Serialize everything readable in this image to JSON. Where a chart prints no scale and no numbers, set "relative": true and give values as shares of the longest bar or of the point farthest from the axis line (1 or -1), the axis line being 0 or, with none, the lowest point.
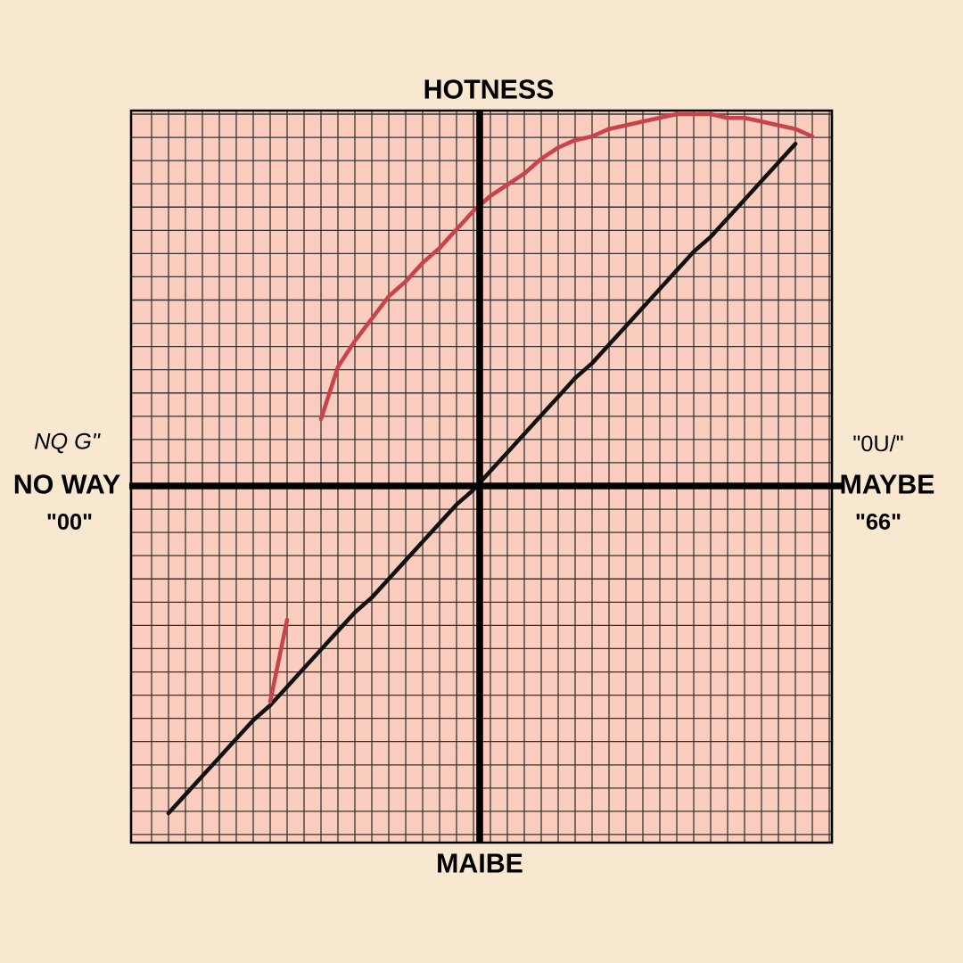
{
  "chart_data": {
    "type": "line",
    "relative": true,
    "xlabel": "MAIBE",
    "ylabel": "HOTNESS",
    "annotations": [
      "NO WAY",
      "NQ G\"",
      "\"00\"",
      "MAYBE",
      "\"0U/\"",
      "\"66\""
    ],
    "categories": [
      null,
      null,
      null,
      null,
      null,
      null,
      null,
      null,
      null,
      null,
      null,
      null,
      null,
      null,
      null,
      null,
      null,
      null,
      null,
      null,
      null,
      null,
      null,
      null,
      null,
      null,
      null,
      null,
      null,
      null,
      null,
      null,
      null,
      null,
      null,
      null,
      null,
      null,
      null,
      null,
      null
    ],
    "series": [
      {
        "color": "#111111",
        "values": [
          null,
          -0.88,
          -0.83,
          -0.78,
          -0.73,
          -0.68,
          -0.63,
          -0.59,
          -0.54,
          -0.49,
          -0.44,
          -0.39,
          -0.34,
          -0.3,
          -0.25,
          -0.2,
          -0.15,
          -0.1,
          -0.05,
          -0.01,
          0.04,
          0.09,
          0.14,
          0.19,
          0.24,
          0.29,
          0.33,
          0.38,
          0.43,
          0.48,
          0.53,
          0.58,
          0.63,
          0.67,
          0.72,
          0.77,
          0.82,
          0.87,
          0.92,
          null,
          null
        ]
      },
      {
        "color": "#c8434a",
        "values": [
          null,
          null,
          null,
          null,
          null,
          null,
          null,
          -0.58,
          -0.36,
          null,
          0.18,
          0.32,
          0.39,
          0.45,
          0.51,
          0.55,
          0.6,
          0.64,
          0.69,
          0.74,
          0.78,
          0.81,
          0.84,
          0.88,
          0.91,
          0.93,
          0.94,
          0.96,
          0.97,
          0.98,
          0.99,
          1,
          1,
          1,
          0.99,
          0.99,
          0.98,
          0.97,
          0.96,
          0.94,
          null
        ]
      }
    ],
    "ref_lines": [
      {
        "axis": "y",
        "value": 0,
        "color": "#000000"
      }
    ],
    "grid": true,
    "marker": "none",
    "line_style": "solid"
  }
}
